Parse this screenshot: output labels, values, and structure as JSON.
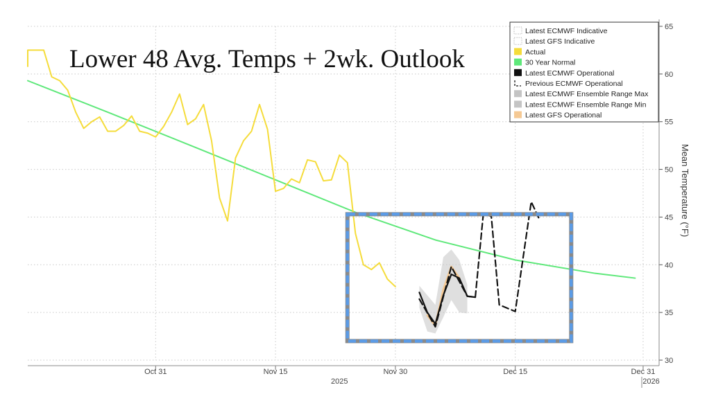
{
  "chart_data": {
    "type": "line",
    "title": "Lower 48 Avg. Temps + 2wk. Outlook",
    "xlabel": "",
    "ylabel": "Mean Temperature (°F)",
    "ylim": [
      30,
      65
    ],
    "yticks": [
      30,
      35,
      40,
      45,
      50,
      55,
      60,
      65
    ],
    "xlim": [
      "2025-10-15",
      "2026-01-02"
    ],
    "x_ticks": [
      {
        "date": "2025-10-31",
        "label": "Oct 31"
      },
      {
        "date": "2025-11-15",
        "label": "Nov 15"
      },
      {
        "date": "2025-11-30",
        "label": "Nov 30"
      },
      {
        "date": "2025-12-15",
        "label": "Dec 15"
      },
      {
        "date": "2025-12-31",
        "label": "Dec 31"
      }
    ],
    "year_labels": [
      {
        "date": "2025-11-23",
        "label": "2025"
      },
      {
        "date": "2026-01-01",
        "label": "2026"
      }
    ],
    "grid": true,
    "legend_position": "top-right",
    "legend": [
      {
        "label": "Latest ECMWF Indicative",
        "color": "#ffffff",
        "style": "dotted"
      },
      {
        "label": "Latest GFS Indicative",
        "color": "#ffffff",
        "style": "dotted"
      },
      {
        "label": "Actual",
        "color": "#f5dc3a",
        "style": "solid"
      },
      {
        "label": "30 Year Normal",
        "color": "#5ee87a",
        "style": "solid"
      },
      {
        "label": "Latest ECMWF Operational",
        "color": "#111111",
        "style": "solid"
      },
      {
        "label": "Previous ECMWF Operational",
        "color": "#111111",
        "style": "dashed"
      },
      {
        "label": "Latest ECMWF Ensemble Range Max",
        "color": "#c4c4c4",
        "style": "solid"
      },
      {
        "label": "Latest ECMWF Ensemble Range Min",
        "color": "#c4c4c4",
        "style": "solid"
      },
      {
        "label": "Latest GFS Operational",
        "color": "#f5c994",
        "style": "solid"
      }
    ],
    "highlight_box": {
      "x": [
        "2025-11-24",
        "2025-12-22"
      ],
      "y": [
        32,
        45.3
      ],
      "color": "#5b9be6"
    },
    "series": [
      {
        "name": "Actual",
        "color": "#f5dc3a",
        "points": [
          [
            "2025-10-15",
            60.8
          ],
          [
            "2025-10-15",
            62.5
          ],
          [
            "2025-10-16",
            62.5
          ],
          [
            "2025-10-17",
            62.5
          ],
          [
            "2025-10-18",
            59.7
          ],
          [
            "2025-10-19",
            59.3
          ],
          [
            "2025-10-20",
            58.3
          ],
          [
            "2025-10-21",
            56.0
          ],
          [
            "2025-10-22",
            54.3
          ],
          [
            "2025-10-23",
            55.0
          ],
          [
            "2025-10-24",
            55.5
          ],
          [
            "2025-10-25",
            54.0
          ],
          [
            "2025-10-26",
            54.0
          ],
          [
            "2025-10-27",
            54.6
          ],
          [
            "2025-10-28",
            55.6
          ],
          [
            "2025-10-29",
            54.0
          ],
          [
            "2025-10-30",
            53.8
          ],
          [
            "2025-10-31",
            53.4
          ],
          [
            "2025-11-01",
            54.5
          ],
          [
            "2025-11-02",
            56.0
          ],
          [
            "2025-11-03",
            57.9
          ],
          [
            "2025-11-04",
            54.7
          ],
          [
            "2025-11-05",
            55.3
          ],
          [
            "2025-11-06",
            56.8
          ],
          [
            "2025-11-07",
            53.0
          ],
          [
            "2025-11-08",
            47.0
          ],
          [
            "2025-11-09",
            44.6
          ],
          [
            "2025-11-10",
            51.2
          ],
          [
            "2025-11-11",
            53.0
          ],
          [
            "2025-11-12",
            54.0
          ],
          [
            "2025-11-13",
            56.8
          ],
          [
            "2025-11-14",
            54.2
          ],
          [
            "2025-11-15",
            47.7
          ],
          [
            "2025-11-16",
            48.0
          ],
          [
            "2025-11-17",
            49.0
          ],
          [
            "2025-11-18",
            48.6
          ],
          [
            "2025-11-19",
            51.0
          ],
          [
            "2025-11-20",
            50.8
          ],
          [
            "2025-11-21",
            48.8
          ],
          [
            "2025-11-22",
            48.9
          ],
          [
            "2025-11-23",
            51.5
          ],
          [
            "2025-11-24",
            50.7
          ],
          [
            "2025-11-25",
            43.3
          ],
          [
            "2025-11-26",
            40.0
          ],
          [
            "2025-11-27",
            39.5
          ],
          [
            "2025-11-28",
            40.2
          ],
          [
            "2025-11-29",
            38.5
          ],
          [
            "2025-11-30",
            37.7
          ]
        ]
      },
      {
        "name": "30 Year Normal",
        "color": "#5ee87a",
        "points": [
          [
            "2025-10-15",
            59.3
          ],
          [
            "2025-10-25",
            56.0
          ],
          [
            "2025-11-05",
            52.3
          ],
          [
            "2025-11-15",
            48.9
          ],
          [
            "2025-11-25",
            45.5
          ],
          [
            "2025-12-05",
            42.6
          ],
          [
            "2025-12-15",
            40.5
          ],
          [
            "2025-12-25",
            39.1
          ],
          [
            "2025-12-30",
            38.6
          ]
        ]
      },
      {
        "name": "Latest ECMWF Operational",
        "color": "#111111",
        "points": [
          [
            "2025-12-03",
            37.1
          ],
          [
            "2025-12-04",
            35.0
          ],
          [
            "2025-12-05",
            33.8
          ],
          [
            "2025-12-06",
            36.8
          ],
          [
            "2025-12-07",
            39.0
          ],
          [
            "2025-12-08",
            38.6
          ],
          [
            "2025-12-09",
            36.7
          ],
          [
            "2025-12-10",
            36.6
          ]
        ]
      },
      {
        "name": "Previous ECMWF Operational",
        "color": "#111111",
        "points": [
          [
            "2025-12-03",
            36.4
          ],
          [
            "2025-12-05",
            33.5
          ],
          [
            "2025-12-07",
            39.8
          ],
          [
            "2025-12-09",
            36.7
          ],
          [
            "2025-12-10",
            36.6
          ],
          [
            "2025-12-11",
            45.3
          ],
          [
            "2025-12-12",
            45.1
          ],
          [
            "2025-12-13",
            35.8
          ],
          [
            "2025-12-15",
            35.1
          ],
          [
            "2025-12-17",
            46.6
          ],
          [
            "2025-12-18",
            44.8
          ]
        ]
      },
      {
        "name": "Latest GFS Operational",
        "color": "#f5c994",
        "points": [
          [
            "2025-12-04",
            34.7
          ],
          [
            "2025-12-05",
            33.6
          ],
          [
            "2025-12-06",
            37.4
          ],
          [
            "2025-12-07",
            39.8
          ],
          [
            "2025-12-08",
            38.6
          ]
        ]
      }
    ],
    "ensemble_range": {
      "color": "#c4c4c4",
      "dates": [
        "2025-12-03",
        "2025-12-04",
        "2025-12-05",
        "2025-12-06",
        "2025-12-07",
        "2025-12-08",
        "2025-12-09"
      ],
      "max": [
        37.8,
        36.8,
        35.8,
        40.8,
        41.6,
        40.5,
        37.9
      ],
      "min": [
        35.5,
        33.0,
        32.8,
        34.5,
        36.3,
        35.0,
        34.9
      ]
    }
  }
}
